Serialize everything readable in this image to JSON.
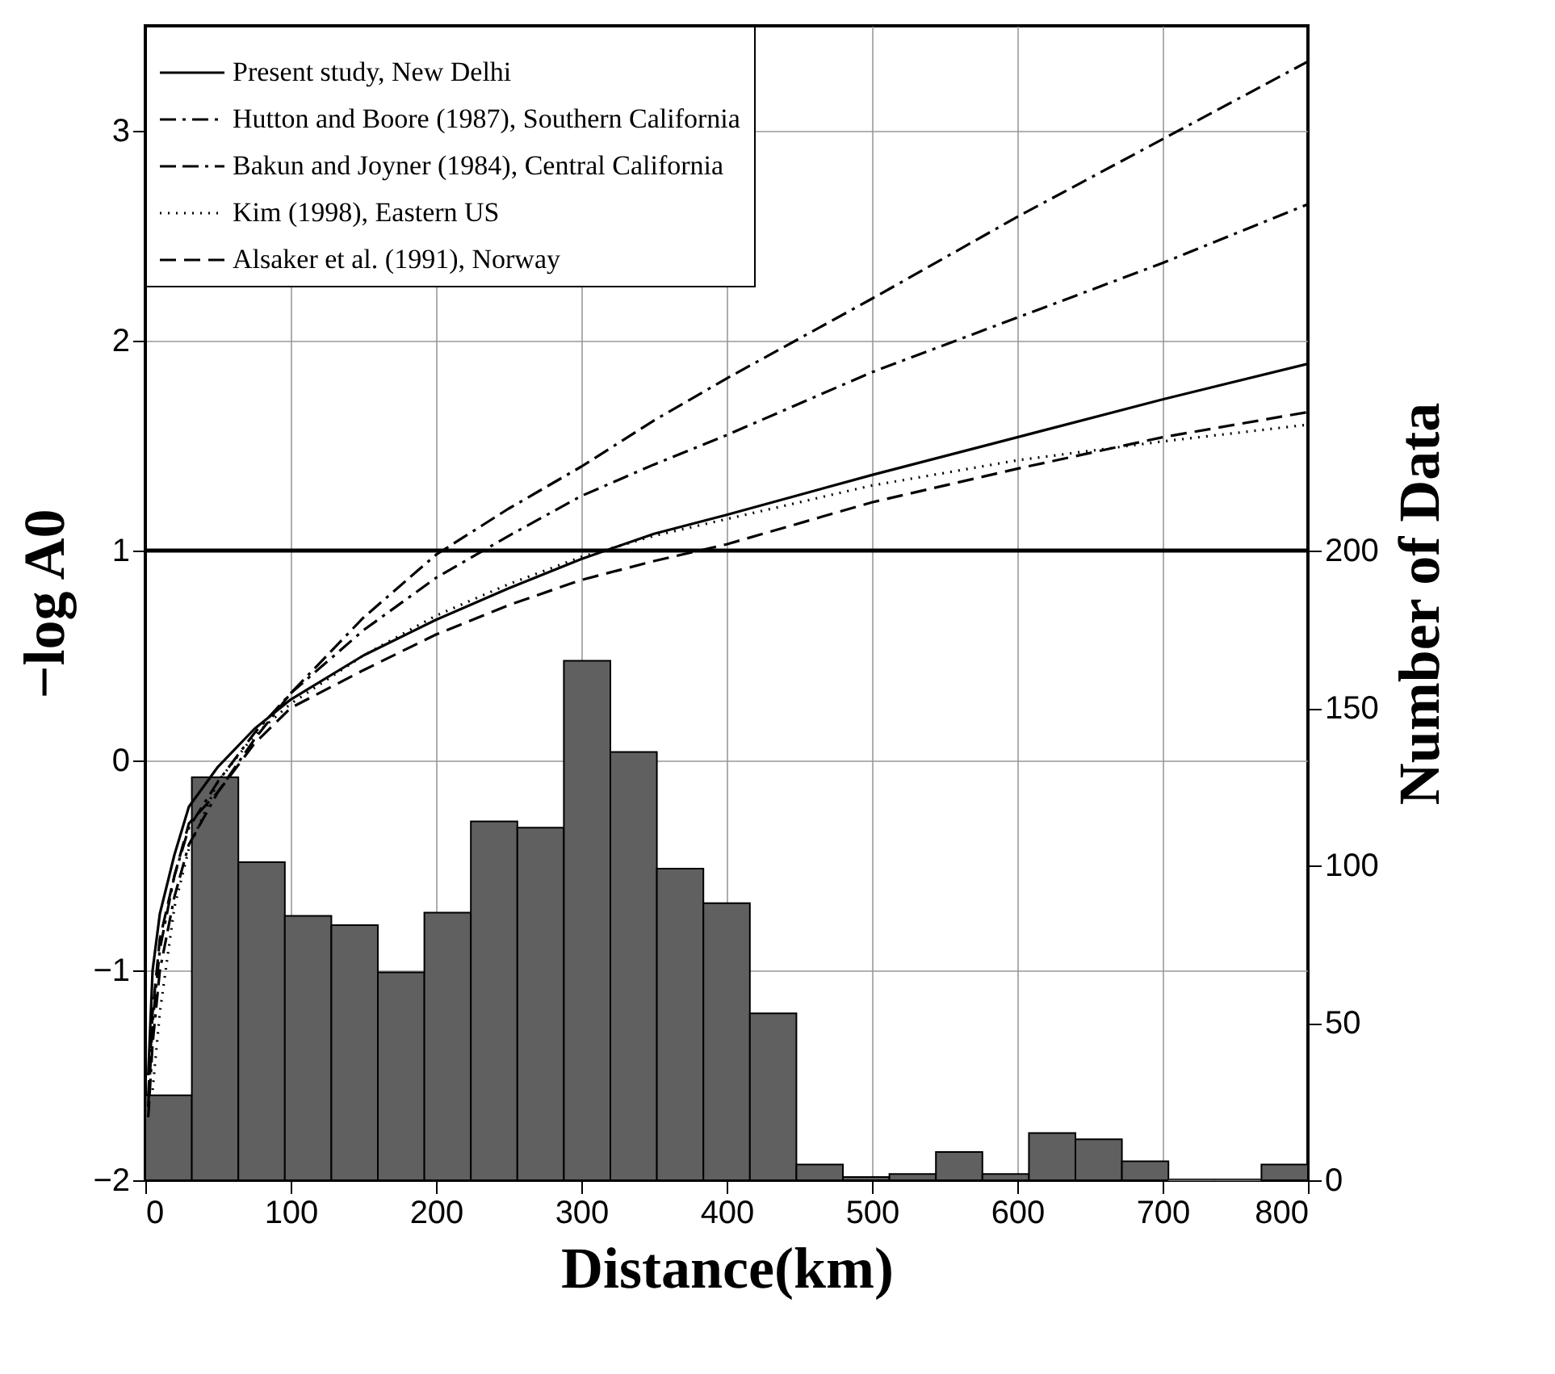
{
  "chart_data": {
    "type": "line",
    "xlabel": "Distance(km)",
    "ylabel": "−log A0",
    "y2label": "Number of Data",
    "xlim": [
      0,
      800
    ],
    "xticks": [
      0,
      100,
      200,
      300,
      400,
      500,
      600,
      700,
      800
    ],
    "ylim": [
      -2,
      3.5
    ],
    "yticks": [
      {
        "value": -2,
        "label": "−2"
      },
      {
        "value": -1,
        "label": "−1"
      },
      0,
      1,
      2,
      3
    ],
    "y2lim": [
      0,
      366.67
    ],
    "y2ticks": [
      0,
      50,
      100,
      150,
      200
    ],
    "grid": true,
    "legend": "top left",
    "marker": "none",
    "ref_lines": [
      {
        "axis": "y",
        "value": 1,
        "color": "#000000",
        "line_style": "solid"
      }
    ],
    "series": [
      {
        "type": "histogram",
        "axis": "y2",
        "color": "#606060",
        "bins": [
          0,
          32,
          64,
          96,
          128,
          160,
          192,
          224,
          256,
          288,
          320,
          352,
          384,
          416,
          448,
          480,
          512,
          544,
          576,
          608,
          640,
          672,
          704,
          736,
          768,
          800
        ],
        "values": [
          27,
          128,
          101,
          84,
          81,
          66,
          85,
          114,
          112,
          165,
          136,
          99,
          88,
          53,
          5,
          1,
          2,
          9,
          2,
          15,
          13,
          6,
          0,
          0,
          5
        ]
      },
      {
        "name": "Present study, New Delhi",
        "color": "#000000",
        "line_style": "solid",
        "x": [
          2,
          5,
          10,
          20,
          30,
          50,
          75,
          100,
          150,
          200,
          250,
          300,
          350,
          400,
          500,
          600,
          700,
          800
        ],
        "values": [
          -1.5,
          -1.0,
          -0.73,
          -0.45,
          -0.22,
          -0.03,
          0.15,
          0.29,
          0.5,
          0.67,
          0.82,
          0.96,
          1.08,
          1.17,
          1.36,
          1.54,
          1.72,
          1.89
        ]
      },
      {
        "name": "Hutton and Boore (1987), Southern California",
        "color": "#000000",
        "line_style": "dashdot",
        "x": [
          2,
          5,
          10,
          20,
          30,
          50,
          75,
          100,
          150,
          200,
          250,
          300,
          350,
          400,
          500,
          600,
          700,
          800
        ],
        "values": [
          -1.65,
          -1.25,
          -0.9,
          -0.55,
          -0.32,
          -0.1,
          0.13,
          0.32,
          0.62,
          0.87,
          1.07,
          1.26,
          1.41,
          1.55,
          1.85,
          2.11,
          2.37,
          2.65
        ]
      },
      {
        "name": "Bakun and Joyner (1984), Central California",
        "color": "#000000",
        "line_style": "dashdotdot",
        "x": [
          2,
          5,
          10,
          20,
          30,
          50,
          75,
          100,
          150,
          200,
          250,
          300,
          350,
          400,
          500,
          600,
          700,
          800
        ],
        "values": [
          -1.7,
          -1.35,
          -1.0,
          -0.65,
          -0.4,
          -0.15,
          0.1,
          0.32,
          0.68,
          0.98,
          1.2,
          1.4,
          1.62,
          1.82,
          2.2,
          2.59,
          2.96,
          3.33
        ]
      },
      {
        "name": "Kim (1998), Eastern US",
        "color": "#000000",
        "line_style": "dotted",
        "x": [
          5,
          10,
          20,
          30,
          50,
          75,
          100,
          150,
          200,
          250,
          300,
          350,
          400,
          500,
          600,
          700,
          800
        ],
        "values": [
          -1.57,
          -1.2,
          -0.7,
          -0.42,
          -0.1,
          0.12,
          0.27,
          0.5,
          0.69,
          0.84,
          0.97,
          1.07,
          1.15,
          1.31,
          1.43,
          1.52,
          1.6
        ]
      },
      {
        "name": "Alsaker et al. (1991), Norway",
        "color": "#000000",
        "line_style": "dashed",
        "x": [
          2,
          5,
          10,
          20,
          30,
          50,
          75,
          100,
          150,
          200,
          250,
          300,
          350,
          400,
          500,
          600,
          700,
          800
        ],
        "values": [
          -1.6,
          -1.2,
          -0.85,
          -0.55,
          -0.3,
          -0.15,
          0.08,
          0.25,
          0.43,
          0.6,
          0.74,
          0.86,
          0.95,
          1.03,
          1.23,
          1.39,
          1.54,
          1.66
        ]
      }
    ]
  }
}
